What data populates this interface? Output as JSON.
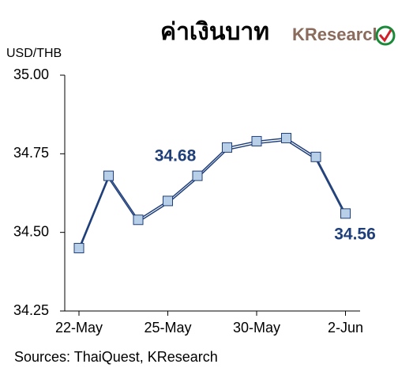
{
  "chart_data": {
    "type": "line",
    "title": "ค่าเงินบาท",
    "logo": "KResearch",
    "y_label": "USD/THB",
    "source": "Sources: ThaiQuest, KResearch",
    "categories": [
      "22-May",
      null,
      null,
      "25-May",
      null,
      null,
      "30-May",
      null,
      null,
      "2-Jun"
    ],
    "values": [
      34.45,
      34.68,
      34.54,
      34.6,
      34.68,
      34.77,
      34.79,
      34.8,
      34.74,
      34.56
    ],
    "value_labels": [
      null,
      null,
      null,
      null,
      "34.68",
      null,
      null,
      null,
      null,
      "34.56"
    ],
    "color": "#1f3f7a",
    "marker_color": "#b8cfe8",
    "ylim": [
      34.25,
      35
    ],
    "yticks": [
      34.25,
      {
        "value": 34.5,
        "label": "34.50"
      },
      34.75,
      {
        "value": 35,
        "label": "35.00"
      }
    ],
    "grid": false
  }
}
